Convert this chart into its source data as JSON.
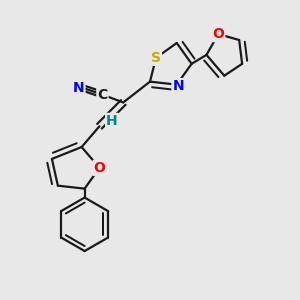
{
  "bg_color": "#e8e8e8",
  "bond_color": "#1a1a1a",
  "bond_width": 1.6,
  "atom_colors": {
    "N": "#0000ff",
    "O": "#ff0000",
    "S": "#ccaa00",
    "C_label": "#1a1a1a",
    "H": "#008888",
    "CN_N": "#0000ff"
  },
  "font_size_atom": 10,
  "fig_size": [
    3.0,
    3.0
  ],
  "dpi": 100
}
